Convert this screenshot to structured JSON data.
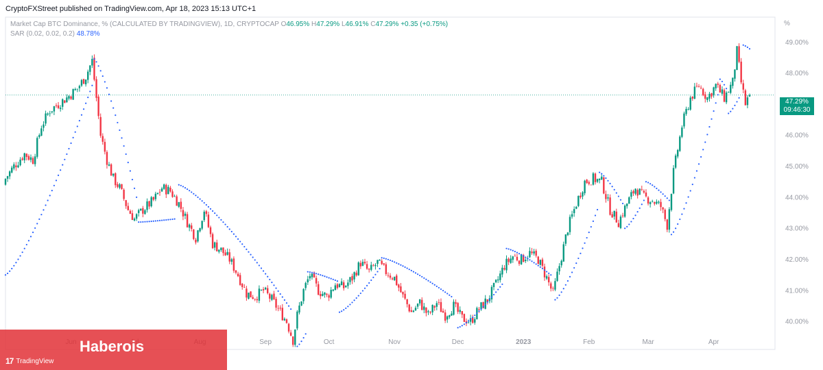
{
  "header": "CryptoFXStreet published on TradingView.com, Apr 18, 2023 15:13 UTC+1",
  "legend": {
    "symbol": "Market Cap BTC Dominance, % (CALCULATED BY TRADINGVIEW), 1D, CRYPTOCAP",
    "open_label": "O",
    "open": "46.95%",
    "high_label": "H",
    "high": "47.29%",
    "low_label": "L",
    "low": "46.91%",
    "close_label": "C",
    "close": "47.29%",
    "change": "+0.35 (+0.75%)",
    "indicator": "SAR (0.02, 0.02, 0.2)",
    "indicator_value": "48.78%"
  },
  "price_tag": {
    "value": "47.29%",
    "countdown": "09:46:30"
  },
  "watermark": {
    "name": "Haberois",
    "brand": "TradingView"
  },
  "colors": {
    "up": "#089981",
    "down": "#f23645",
    "sar": "#2962ff",
    "text_muted": "#9598a1"
  },
  "chart_data": {
    "type": "candlestick",
    "unit_label": "%",
    "y_ticks": [
      "49.00%",
      "48.00%",
      "47.00%",
      "46.00%",
      "45.00%",
      "44.00%",
      "43.00%",
      "42.00%",
      "41.00%",
      "40.00%"
    ],
    "ylim": [
      39.1,
      49.8
    ],
    "x_ticks": [
      "Jun",
      "Jul",
      "Aug",
      "Sep",
      "Oct",
      "Nov",
      "Dec",
      "2023",
      "Feb",
      "Mar",
      "Apr"
    ],
    "xlim": [
      "2022-05-01",
      "2023-04-30"
    ],
    "last_price": 47.29,
    "closes": [
      [
        "2022-05-01",
        44.6
      ],
      [
        "2022-05-05",
        45.0
      ],
      [
        "2022-05-10",
        45.4
      ],
      [
        "2022-05-14",
        45.2
      ],
      [
        "2022-05-18",
        46.3
      ],
      [
        "2022-05-22",
        46.8
      ],
      [
        "2022-05-26",
        47.0
      ],
      [
        "2022-05-30",
        47.2
      ],
      [
        "2022-06-04",
        47.5
      ],
      [
        "2022-06-08",
        47.9
      ],
      [
        "2022-06-11",
        48.4
      ],
      [
        "2022-06-13",
        47.2
      ],
      [
        "2022-06-15",
        46.0
      ],
      [
        "2022-06-18",
        45.2
      ],
      [
        "2022-06-21",
        44.6
      ],
      [
        "2022-06-24",
        44.3
      ],
      [
        "2022-06-28",
        43.6
      ],
      [
        "2022-07-01",
        43.3
      ],
      [
        "2022-07-05",
        43.6
      ],
      [
        "2022-07-10",
        43.9
      ],
      [
        "2022-07-14",
        44.3
      ],
      [
        "2022-07-18",
        44.2
      ],
      [
        "2022-07-22",
        43.8
      ],
      [
        "2022-07-26",
        43.2
      ],
      [
        "2022-07-30",
        42.7
      ],
      [
        "2022-08-03",
        43.6
      ],
      [
        "2022-08-07",
        42.5
      ],
      [
        "2022-08-11",
        42.3
      ],
      [
        "2022-08-15",
        42.0
      ],
      [
        "2022-08-19",
        41.5
      ],
      [
        "2022-08-23",
        40.9
      ],
      [
        "2022-08-27",
        40.8
      ],
      [
        "2022-08-31",
        41.0
      ],
      [
        "2022-09-04",
        40.7
      ],
      [
        "2022-09-08",
        40.3
      ],
      [
        "2022-09-11",
        40.0
      ],
      [
        "2022-09-14",
        39.4
      ],
      [
        "2022-09-16",
        40.2
      ],
      [
        "2022-09-19",
        41.0
      ],
      [
        "2022-09-22",
        41.5
      ],
      [
        "2022-09-26",
        41.0
      ],
      [
        "2022-09-30",
        40.8
      ],
      [
        "2022-10-04",
        41.2
      ],
      [
        "2022-10-08",
        41.1
      ],
      [
        "2022-10-12",
        41.4
      ],
      [
        "2022-10-16",
        41.9
      ],
      [
        "2022-10-20",
        41.6
      ],
      [
        "2022-10-24",
        41.9
      ],
      [
        "2022-10-28",
        41.6
      ],
      [
        "2022-11-01",
        41.4
      ],
      [
        "2022-11-05",
        40.8
      ],
      [
        "2022-11-09",
        40.3
      ],
      [
        "2022-11-13",
        40.6
      ],
      [
        "2022-11-17",
        40.2
      ],
      [
        "2022-11-21",
        40.6
      ],
      [
        "2022-11-25",
        40.2
      ],
      [
        "2022-11-29",
        40.5
      ],
      [
        "2022-12-03",
        40.1
      ],
      [
        "2022-12-07",
        40.0
      ],
      [
        "2022-12-11",
        40.4
      ],
      [
        "2022-12-15",
        40.7
      ],
      [
        "2022-12-19",
        41.2
      ],
      [
        "2022-12-23",
        41.8
      ],
      [
        "2022-12-27",
        42.1
      ],
      [
        "2022-12-31",
        42.0
      ],
      [
        "2023-01-04",
        42.2
      ],
      [
        "2023-01-08",
        42.0
      ],
      [
        "2023-01-12",
        41.4
      ],
      [
        "2023-01-15",
        40.9
      ],
      [
        "2023-01-18",
        41.8
      ],
      [
        "2023-01-22",
        43.0
      ],
      [
        "2023-01-26",
        43.8
      ],
      [
        "2023-01-30",
        44.5
      ],
      [
        "2023-02-03",
        44.6
      ],
      [
        "2023-02-07",
        44.5
      ],
      [
        "2023-02-11",
        43.6
      ],
      [
        "2023-02-15",
        43.2
      ],
      [
        "2023-02-19",
        43.8
      ],
      [
        "2023-02-23",
        44.3
      ],
      [
        "2023-02-27",
        44.0
      ],
      [
        "2023-03-03",
        43.9
      ],
      [
        "2023-03-07",
        43.7
      ],
      [
        "2023-03-10",
        43.1
      ],
      [
        "2023-03-13",
        44.8
      ],
      [
        "2023-03-17",
        46.3
      ],
      [
        "2023-03-21",
        47.2
      ],
      [
        "2023-03-25",
        47.6
      ],
      [
        "2023-03-29",
        47.2
      ],
      [
        "2023-04-02",
        47.6
      ],
      [
        "2023-04-06",
        47.2
      ],
      [
        "2023-04-10",
        47.7
      ],
      [
        "2023-04-12",
        48.7
      ],
      [
        "2023-04-14",
        47.7
      ],
      [
        "2023-04-16",
        47.0
      ],
      [
        "2023-04-18",
        47.29
      ]
    ],
    "sar_segments": [
      {
        "side": "below",
        "from": [
          "2022-05-01",
          41.5
        ],
        "to": [
          "2022-06-11",
          47.6
        ]
      },
      {
        "side": "above",
        "from": [
          "2022-06-12",
          48.45
        ],
        "to": [
          "2022-07-02",
          44.0
        ]
      },
      {
        "side": "below",
        "from": [
          "2022-07-03",
          43.2
        ],
        "to": [
          "2022-07-20",
          43.3
        ]
      },
      {
        "side": "above",
        "from": [
          "2022-07-22",
          44.4
        ],
        "to": [
          "2022-09-13",
          40.4
        ]
      },
      {
        "side": "below",
        "from": [
          "2022-09-16",
          39.2
        ],
        "to": [
          "2022-09-20",
          39.6
        ]
      },
      {
        "side": "above",
        "from": [
          "2022-09-21",
          41.6
        ],
        "to": [
          "2022-10-05",
          41.3
        ]
      },
      {
        "side": "below",
        "from": [
          "2022-10-06",
          40.3
        ],
        "to": [
          "2022-10-25",
          41.7
        ]
      },
      {
        "side": "above",
        "from": [
          "2022-10-26",
          42.05
        ],
        "to": [
          "2022-11-28",
          40.8
        ]
      },
      {
        "side": "below",
        "from": [
          "2022-12-01",
          39.8
        ],
        "to": [
          "2022-12-22",
          41.2
        ]
      },
      {
        "side": "above",
        "from": [
          "2022-12-24",
          42.35
        ],
        "to": [
          "2023-01-14",
          41.5
        ]
      },
      {
        "side": "below",
        "from": [
          "2023-01-16",
          40.7
        ],
        "to": [
          "2023-02-05",
          43.6
        ]
      },
      {
        "side": "above",
        "from": [
          "2023-02-06",
          44.8
        ],
        "to": [
          "2023-02-17",
          43.8
        ]
      },
      {
        "side": "below",
        "from": [
          "2023-02-18",
          43.0
        ],
        "to": [
          "2023-02-27",
          43.9
        ]
      },
      {
        "side": "above",
        "from": [
          "2023-02-28",
          44.5
        ],
        "to": [
          "2023-03-11",
          43.9
        ]
      },
      {
        "side": "below",
        "from": [
          "2023-03-12",
          42.8
        ],
        "to": [
          "2023-04-03",
          47.3
        ]
      },
      {
        "side": "above",
        "from": [
          "2023-04-04",
          47.8
        ],
        "to": [
          "2023-04-07",
          47.5
        ]
      },
      {
        "side": "below",
        "from": [
          "2023-04-08",
          46.7
        ],
        "to": [
          "2023-04-13",
          47.2
        ]
      },
      {
        "side": "above",
        "from": [
          "2023-04-15",
          48.9
        ],
        "to": [
          "2023-04-18",
          48.78
        ]
      }
    ]
  }
}
